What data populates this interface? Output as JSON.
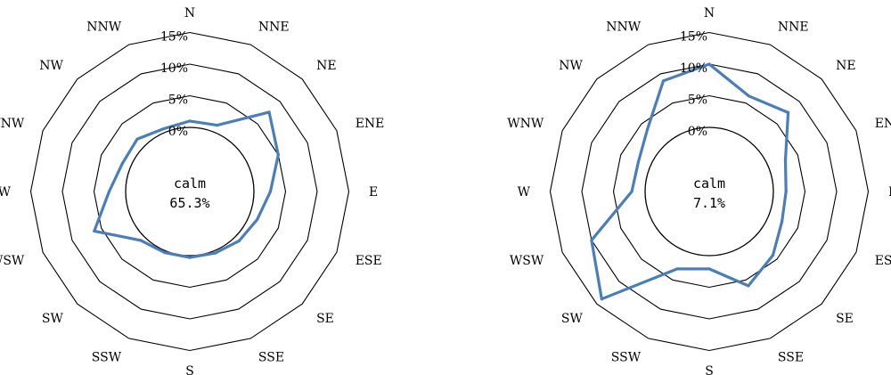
{
  "chart_data": [
    {
      "type": "radar",
      "directions": [
        "N",
        "NNE",
        "NE",
        "ENE",
        "E",
        "ESE",
        "SE",
        "SSE",
        "S",
        "SSW",
        "SW",
        "WSW",
        "W",
        "WNW",
        "NW",
        "NNW"
      ],
      "ring_labels": [
        "0%",
        "5%",
        "10%",
        "15%"
      ],
      "rlim": [
        0,
        15
      ],
      "values": [
        1.0,
        1.2,
        7.6,
        5.0,
        2.6,
        1.4,
        0.9,
        0.4,
        0.3,
        0.3,
        0.8,
        6.2,
        2.6,
        1.4,
        1.6,
        0.6
      ],
      "center_label": "calm",
      "center_value": "65.3%",
      "series_color": "#4a7ebb"
    },
    {
      "type": "radar",
      "directions": [
        "N",
        "NNE",
        "NE",
        "ENE",
        "E",
        "ESE",
        "SE",
        "SSE",
        "S",
        "SSW",
        "SW",
        "WSW",
        "W",
        "WNW",
        "NW",
        "NNW"
      ],
      "ring_labels": [
        "0%",
        "5%",
        "10%",
        "15%"
      ],
      "rlim": [
        0,
        15
      ],
      "values": [
        10.0,
        6.2,
        7.5,
        2.9,
        2.0,
        2.3,
        4.1,
        6.0,
        2.1,
        3.1,
        13.9,
        10.0,
        2.1,
        2.0,
        3.7,
        8.8
      ],
      "center_label": "calm",
      "center_value": "7.1%",
      "series_color": "#4a7ebb"
    }
  ]
}
